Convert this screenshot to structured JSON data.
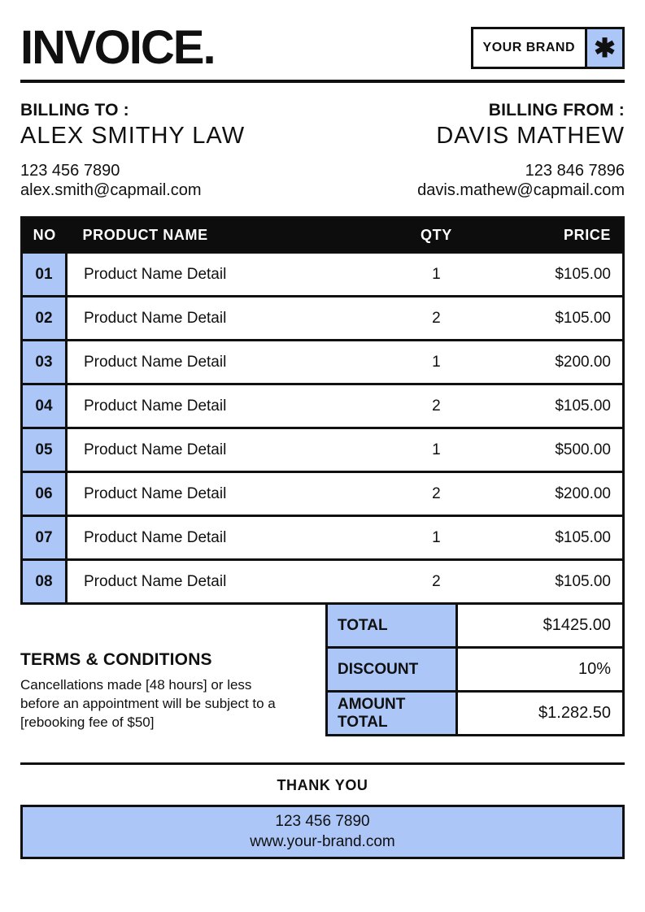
{
  "header": {
    "title": "INVOICE.",
    "brand_label": "YOUR BRAND",
    "brand_icon": "✱"
  },
  "billing_to": {
    "label": "BILLING TO :",
    "name": "ALEX SMITHY LAW",
    "phone": "123 456 7890",
    "email": "alex.smith@capmail.com"
  },
  "billing_from": {
    "label": "BILLING FROM :",
    "name": "DAVIS MATHEW",
    "phone": "123 846 7896",
    "email": "davis.mathew@capmail.com"
  },
  "table": {
    "headers": {
      "no": "NO",
      "product": "PRODUCT NAME",
      "qty": "QTY",
      "price": "PRICE"
    },
    "rows": [
      {
        "no": "01",
        "product": "Product Name Detail",
        "qty": "1",
        "price": "$105.00"
      },
      {
        "no": "02",
        "product": "Product Name Detail",
        "qty": "2",
        "price": "$105.00"
      },
      {
        "no": "03",
        "product": "Product Name Detail",
        "qty": "1",
        "price": "$200.00"
      },
      {
        "no": "04",
        "product": "Product Name Detail",
        "qty": "2",
        "price": "$105.00"
      },
      {
        "no": "05",
        "product": "Product Name Detail",
        "qty": "1",
        "price": "$500.00"
      },
      {
        "no": "06",
        "product": "Product Name Detail",
        "qty": "2",
        "price": "$200.00"
      },
      {
        "no": "07",
        "product": "Product Name Detail",
        "qty": "1",
        "price": "$105.00"
      },
      {
        "no": "08",
        "product": "Product Name Detail",
        "qty": "2",
        "price": "$105.00"
      }
    ]
  },
  "totals": [
    {
      "label": "TOTAL",
      "value": "$1425.00"
    },
    {
      "label": "DISCOUNT",
      "value": "10%"
    },
    {
      "label": "AMOUNT TOTAL",
      "value": "$1.282.50"
    }
  ],
  "terms": {
    "heading": "TERMS & CONDITIONS",
    "body": "Cancellations made [48 hours] or less before an appointment will be subject to a [rebooking fee of $50]"
  },
  "footer": {
    "thank_you": "THANK YOU",
    "phone": "123 456 7890",
    "website": "www.your-brand.com"
  },
  "colors": {
    "accent_blue": "#ADC6F8",
    "ink": "#101010"
  }
}
